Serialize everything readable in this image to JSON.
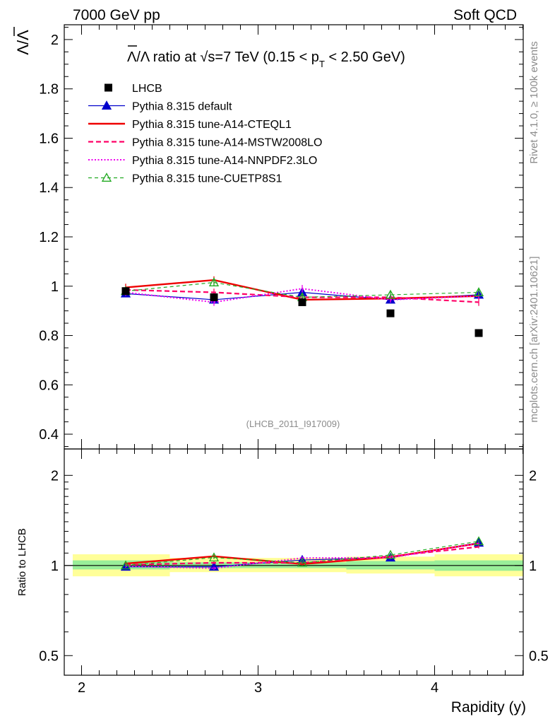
{
  "header": {
    "left": "7000 GeV pp",
    "right": "Soft QCD"
  },
  "side": {
    "rivet": "Rivet 4.1.0, ≥ 100k events",
    "mcplots": "mcplots.cern.ch [arXiv:2401.10621]"
  },
  "chart_data": [
    {
      "type": "scatter",
      "title_parts": {
        "lead": "Λ/Λ ratio at √s=7 TeV (0.15 < p",
        "sub": "T",
        "tail": " < 2.50 GeV)"
      },
      "ylabel": "Λ/Λ",
      "ylim": [
        0.34,
        2.06
      ],
      "yticks": [
        0.4,
        0.6,
        0.8,
        1.0,
        1.2,
        1.4,
        1.6,
        1.8,
        2.0
      ],
      "ytick_labels": [
        "0.4",
        "0.6",
        "0.8",
        "1",
        "1.2",
        "1.4",
        "1.6",
        "1.8",
        "2"
      ],
      "xlim": [
        1.95,
        4.55
      ],
      "x": [
        2.25,
        2.75,
        3.25,
        3.75,
        4.25
      ],
      "watermark": "(LHCB_2011_I917009)",
      "data_series": {
        "name": "LHCB",
        "values": [
          0.98,
          0.955,
          0.935,
          0.89,
          0.81
        ]
      },
      "series": [
        {
          "name": "Pythia 8.315 default",
          "color": "#0000cc",
          "style": "solid",
          "marker": "filled-triangle",
          "values": [
            0.97,
            0.945,
            0.975,
            0.945,
            0.965
          ],
          "errors": [
            0.012,
            0.012,
            0.012,
            0.012,
            0.012
          ]
        },
        {
          "name": "Pythia 8.315 tune-A14-CTEQL1",
          "color": "#ee0000",
          "style": "solid-thick",
          "marker": "none",
          "values": [
            0.995,
            1.025,
            0.945,
            0.95,
            0.96
          ],
          "errors": [
            0.015,
            0.015,
            0.012,
            0.012,
            0.012
          ]
        },
        {
          "name": "Pythia 8.315 tune-A14-MSTW2008LO",
          "color": "#ff0066",
          "style": "dashed",
          "marker": "none",
          "values": [
            0.985,
            0.975,
            0.955,
            0.955,
            0.935
          ],
          "errors": [
            0.015,
            0.015,
            0.015,
            0.012,
            0.015
          ]
        },
        {
          "name": "Pythia 8.315 tune-A14-NNPDF2.3LO",
          "color": "#ee00ee",
          "style": "dotted",
          "marker": "none",
          "values": [
            0.975,
            0.935,
            0.99,
            0.945,
            0.96
          ],
          "errors": [
            0.015,
            0.015,
            0.015,
            0.012,
            0.012
          ]
        },
        {
          "name": "Pythia 8.315 tune-CUETP8S1",
          "color": "#22aa22",
          "style": "dashed-thin",
          "marker": "open-triangle",
          "values": [
            0.98,
            1.015,
            0.955,
            0.965,
            0.975
          ],
          "errors": [
            0.015,
            0.015,
            0.015,
            0.015,
            0.015
          ]
        }
      ]
    },
    {
      "type": "line",
      "ylabel": "Ratio to LHCB",
      "scale": "log",
      "ylim": [
        0.43,
        2.45
      ],
      "yticks": [
        0.5,
        1,
        2
      ],
      "ytick_labels": [
        "0.5",
        "1",
        "2"
      ],
      "xlabel": "Rapidity (y)",
      "xticks": [
        2,
        3,
        4
      ],
      "xtick_labels": [
        "2",
        "3",
        "4"
      ],
      "bands": [
        {
          "x": [
            1.95,
            2.5
          ],
          "inner": [
            0.97,
            1.04
          ],
          "outer": [
            0.92,
            1.09
          ]
        },
        {
          "x": [
            2.5,
            3.5
          ],
          "inner": [
            0.98,
            1.025
          ],
          "outer": [
            0.95,
            1.06
          ]
        },
        {
          "x": [
            3.5,
            4.0
          ],
          "inner": [
            0.97,
            1.035
          ],
          "outer": [
            0.94,
            1.07
          ]
        },
        {
          "x": [
            4.0,
            4.5
          ],
          "inner": [
            0.96,
            1.04
          ],
          "outer": [
            0.92,
            1.09
          ]
        }
      ],
      "series": [
        {
          "name": "Pythia 8.315 default",
          "values": [
            0.99,
            0.99,
            1.043,
            1.062,
            1.191
          ]
        },
        {
          "name": "Pythia 8.315 tune-A14-CTEQL1",
          "values": [
            1.015,
            1.073,
            1.011,
            1.067,
            1.185
          ]
        },
        {
          "name": "Pythia 8.315 tune-A14-MSTW2008LO",
          "values": [
            1.005,
            1.021,
            1.021,
            1.073,
            1.154
          ]
        },
        {
          "name": "Pythia 8.315 tune-A14-NNPDF2.3LO",
          "values": [
            0.995,
            0.979,
            1.059,
            1.062,
            1.185
          ]
        },
        {
          "name": "Pythia 8.315 tune-CUETP8S1",
          "values": [
            1.0,
            1.063,
            1.021,
            1.084,
            1.204
          ]
        }
      ]
    }
  ]
}
